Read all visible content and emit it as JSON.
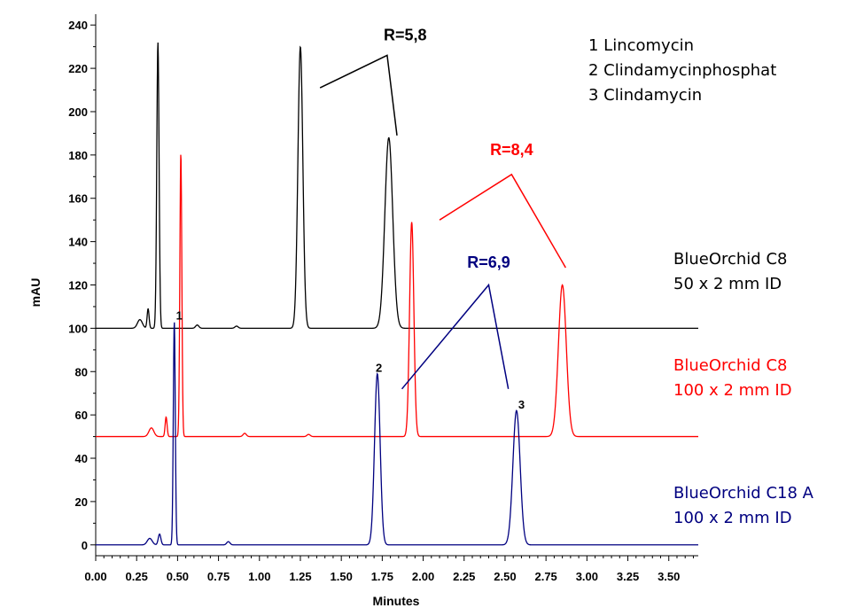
{
  "chart_data": {
    "type": "line",
    "title": "",
    "xlabel": "Minutes",
    "ylabel": "mAU",
    "xlim": [
      0.0,
      3.68
    ],
    "ylim": [
      -5,
      245
    ],
    "x_ticks": [
      "0.00",
      "0.25",
      "0.50",
      "0.75",
      "1.00",
      "1.25",
      "1.50",
      "1.75",
      "2.00",
      "2.25",
      "2.50",
      "2.75",
      "3.00",
      "3.25",
      "3.50"
    ],
    "y_ticks": [
      "0",
      "20",
      "40",
      "60",
      "80",
      "100",
      "120",
      "140",
      "160",
      "180",
      "200",
      "220",
      "240"
    ],
    "grid": false,
    "compound_legend": [
      "1 Lincomycin",
      "2 Clindamycinphosphat",
      "3 Clindamycin"
    ],
    "series": [
      {
        "name_lines": [
          "BlueOrchid C8",
          "50 x 2 mm ID"
        ],
        "color": "#000000",
        "baseline": 100,
        "peaks": [
          {
            "rt": 0.27,
            "height": 4,
            "width": 0.015
          },
          {
            "rt": 0.32,
            "height": 9,
            "width": 0.006
          },
          {
            "rt": 0.38,
            "height": 132,
            "width": 0.007
          },
          {
            "rt": 0.62,
            "height": 1.5,
            "width": 0.01
          },
          {
            "rt": 0.86,
            "height": 1,
            "width": 0.01
          },
          {
            "rt": 1.25,
            "height": 130,
            "width": 0.015
          },
          {
            "rt": 1.79,
            "height": 88,
            "width": 0.024
          }
        ],
        "resolution": "R=5,8"
      },
      {
        "name_lines": [
          "BlueOrchid C8",
          "100 x 2 mm ID"
        ],
        "color": "#ff0000",
        "baseline": 50,
        "peaks": [
          {
            "rt": 0.34,
            "height": 4,
            "width": 0.015
          },
          {
            "rt": 0.43,
            "height": 9,
            "width": 0.006
          },
          {
            "rt": 0.52,
            "height": 131,
            "width": 0.006
          },
          {
            "rt": 0.91,
            "height": 1.5,
            "width": 0.01
          },
          {
            "rt": 1.3,
            "height": 1,
            "width": 0.01
          },
          {
            "rt": 1.93,
            "height": 99,
            "width": 0.013
          },
          {
            "rt": 2.85,
            "height": 70,
            "width": 0.024
          }
        ],
        "resolution": "R=8,4"
      },
      {
        "name_lines": [
          "BlueOrchid C18 A",
          "100 x 2 mm ID"
        ],
        "color": "#000080",
        "baseline": 0,
        "peaks": [
          {
            "rt": 0.33,
            "height": 3,
            "width": 0.015
          },
          {
            "rt": 0.39,
            "height": 5,
            "width": 0.008
          },
          {
            "rt": 0.48,
            "height": 103,
            "width": 0.006
          },
          {
            "rt": 0.81,
            "height": 1.5,
            "width": 0.01
          },
          {
            "rt": 1.72,
            "height": 79,
            "width": 0.017
          },
          {
            "rt": 2.57,
            "height": 62,
            "width": 0.022
          }
        ],
        "resolution": "R=6,9"
      }
    ],
    "peak_labels": [
      {
        "text": "1",
        "x": 0.51,
        "y": 104
      },
      {
        "text": "2",
        "x": 1.73,
        "y": 80
      },
      {
        "text": "3",
        "x": 2.6,
        "y": 63
      }
    ],
    "resolution_brackets": [
      {
        "series": 0,
        "apex": [
          1.78,
          226
        ],
        "left": [
          1.37,
          211
        ],
        "right": [
          1.84,
          189
        ],
        "label_at": [
          1.89,
          233
        ]
      },
      {
        "series": 1,
        "apex": [
          2.54,
          171
        ],
        "left": [
          2.1,
          150
        ],
        "right": [
          2.87,
          128
        ],
        "label_at": [
          2.54,
          180
        ]
      },
      {
        "series": 2,
        "apex": [
          2.4,
          120
        ],
        "left": [
          1.87,
          72
        ],
        "right": [
          2.52,
          72
        ],
        "label_at": [
          2.4,
          128
        ]
      }
    ]
  }
}
